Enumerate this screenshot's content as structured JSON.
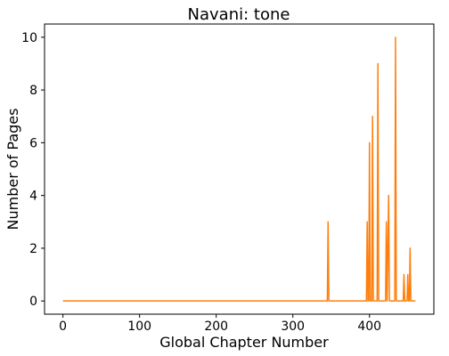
{
  "chart_data": {
    "type": "line",
    "title": "Navani: tone",
    "xlabel": "Global Chapter Number",
    "ylabel": "Number of Pages",
    "xlim": [
      -24,
      484
    ],
    "ylim": [
      -0.5,
      10.5
    ],
    "xticks": [
      0,
      100,
      200,
      300,
      400
    ],
    "yticks": [
      0,
      2,
      4,
      6,
      8,
      10
    ],
    "grid": false,
    "legend": "none",
    "line_color": "#ff7f0e",
    "series": [
      {
        "x": [
          0,
          345,
          346,
          347,
          396,
          397,
          398,
          399,
          400,
          401,
          402,
          403,
          404,
          405,
          406,
          410,
          411,
          412,
          413,
          414,
          421,
          422,
          423,
          425,
          426,
          427,
          433,
          434,
          435,
          436,
          444,
          445,
          446,
          449,
          450,
          451,
          452,
          453,
          454,
          455,
          456,
          460
        ],
        "y": [
          0,
          0,
          3,
          0,
          0,
          3,
          0,
          0,
          6,
          0,
          0,
          0,
          7,
          0,
          0,
          0,
          9,
          0,
          0,
          0,
          0,
          3,
          0,
          4,
          0,
          0,
          0,
          10,
          0,
          0,
          0,
          1,
          0,
          0,
          1,
          0,
          0,
          2,
          0,
          0,
          0,
          0
        ]
      }
    ]
  }
}
